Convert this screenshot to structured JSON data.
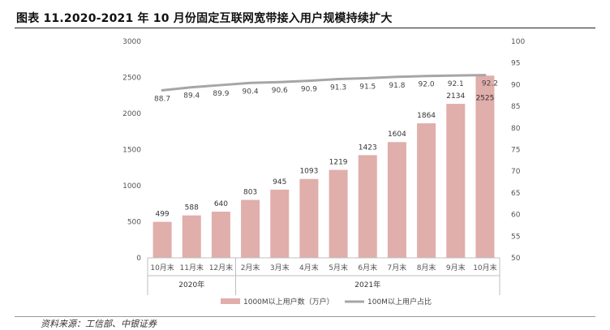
{
  "title": "图表 11.2020-2021 年 10 月份固定互联网宽带接入用户规模持续扩大",
  "source": "资料来源：工信部、中银证券",
  "chart_data": {
    "type": "bar",
    "categories": [
      "10月末",
      "11月末",
      "12月末",
      "2月末",
      "3月末",
      "4月末",
      "5月末",
      "6月末",
      "7月末",
      "8月末",
      "9月末",
      "10月末"
    ],
    "groups": [
      {
        "label": "2020年",
        "start": 0,
        "end": 2
      },
      {
        "label": "2021年",
        "start": 3,
        "end": 11
      }
    ],
    "series": [
      {
        "name": "1000M以上用户数（万户）",
        "type": "bar",
        "axis": "left",
        "color": "#e0aeab",
        "values": [
          499,
          588,
          640,
          803,
          945,
          1093,
          1219,
          1423,
          1604,
          1864,
          2134,
          2525
        ],
        "labels": [
          "499",
          "588",
          "640",
          "803",
          "945",
          "1093",
          "1219",
          "1423",
          "1604",
          "1864",
          "2134",
          "2525"
        ]
      },
      {
        "name": "100M以上用户占比",
        "type": "line",
        "axis": "right",
        "color": "#a6a6a6",
        "values": [
          88.7,
          89.4,
          89.9,
          90.4,
          90.6,
          90.9,
          91.3,
          91.5,
          91.8,
          92.0,
          92.1,
          92.2
        ],
        "labels": [
          "88.7",
          "89.4",
          "89.9",
          "90.4",
          "90.6",
          "90.9",
          "91.3",
          "91.5",
          "91.8",
          "92.0",
          "92.1",
          "92.2"
        ]
      }
    ],
    "y_left": {
      "min": 0,
      "max": 3000,
      "ticks": [
        0,
        500,
        1000,
        1500,
        2000,
        2500,
        3000
      ]
    },
    "y_right": {
      "min": 50,
      "max": 100,
      "ticks": [
        50,
        55,
        60,
        65,
        70,
        75,
        80,
        85,
        90,
        95,
        100
      ]
    },
    "grid": false,
    "legend_position": "bottom"
  }
}
